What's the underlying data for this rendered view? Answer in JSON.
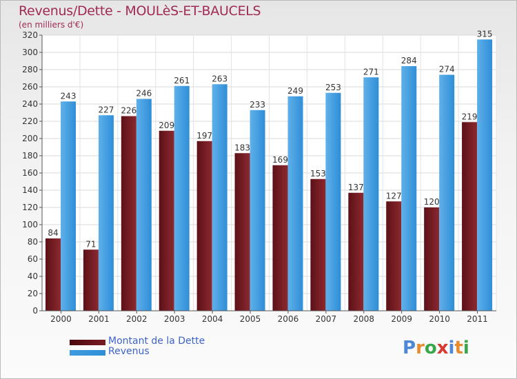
{
  "chart_data": {
    "type": "bar",
    "title": "Revenus/Dette - MOULèS-ET-BAUCELS",
    "subtitle": "(en milliers d'€)",
    "categories": [
      "2000",
      "2001",
      "2002",
      "2003",
      "2004",
      "2005",
      "2006",
      "2007",
      "2008",
      "2009",
      "2010",
      "2011"
    ],
    "series": [
      {
        "name": "Montant de la Dette",
        "color": "#7a1c22",
        "values": [
          84,
          71,
          226,
          209,
          197,
          183,
          169,
          153,
          137,
          127,
          120,
          219
        ]
      },
      {
        "name": "Revenus",
        "color": "#3e9bde",
        "values": [
          243,
          227,
          246,
          261,
          263,
          233,
          249,
          253,
          271,
          284,
          274,
          315
        ]
      }
    ],
    "ylim": [
      0,
      320
    ],
    "yticks": [
      0,
      20,
      40,
      60,
      80,
      100,
      120,
      140,
      160,
      180,
      200,
      220,
      240,
      260,
      280,
      300,
      320
    ],
    "grid": true,
    "legend": "bottom-left"
  },
  "logo": {
    "letters": [
      "P",
      "r",
      "o",
      "x",
      "i",
      "t",
      "i"
    ],
    "colors": [
      "#4d88d8",
      "#e88a2e",
      "#3aa64a",
      "#d9382e",
      "#4d88d8",
      "#e88a2e",
      "#3aa64a"
    ]
  }
}
